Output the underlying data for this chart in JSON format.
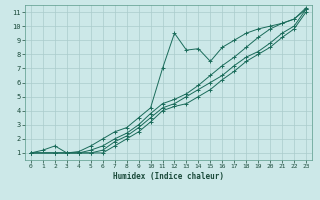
{
  "xlabel": "Humidex (Indice chaleur)",
  "bg_color": "#cce8e8",
  "grid_color": "#aacccc",
  "line_color": "#1a6b5a",
  "xlim": [
    -0.5,
    23.5
  ],
  "ylim": [
    0.5,
    11.5
  ],
  "xticks": [
    0,
    1,
    2,
    3,
    4,
    5,
    6,
    7,
    8,
    9,
    10,
    11,
    12,
    13,
    14,
    15,
    16,
    17,
    18,
    19,
    20,
    21,
    22,
    23
  ],
  "yticks": [
    1,
    2,
    3,
    4,
    5,
    6,
    7,
    8,
    9,
    10,
    11
  ],
  "line1_x": [
    0,
    1,
    2,
    3,
    4,
    5,
    6,
    7,
    8,
    9,
    10,
    11,
    12,
    13,
    14,
    15,
    16,
    17,
    18,
    19,
    20,
    21,
    22,
    23
  ],
  "line1_y": [
    1.0,
    1.2,
    1.5,
    1.0,
    1.1,
    1.5,
    2.0,
    2.5,
    2.8,
    3.5,
    4.2,
    7.0,
    9.5,
    8.3,
    8.4,
    7.5,
    8.5,
    9.0,
    9.5,
    9.8,
    10.0,
    10.2,
    10.5,
    11.2
  ],
  "line2_x": [
    0,
    2,
    3,
    4,
    5,
    6,
    7,
    8,
    9,
    10,
    11,
    12,
    13,
    14,
    15,
    16,
    17,
    18,
    19,
    20,
    21,
    22,
    23
  ],
  "line2_y": [
    1.0,
    1.0,
    1.0,
    1.0,
    1.2,
    1.5,
    2.0,
    2.4,
    3.0,
    3.8,
    4.5,
    4.8,
    5.2,
    5.8,
    6.5,
    7.2,
    7.8,
    8.5,
    9.2,
    9.8,
    10.2,
    10.5,
    11.3
  ],
  "line3_x": [
    0,
    2,
    3,
    4,
    5,
    6,
    7,
    8,
    9,
    10,
    11,
    12,
    13,
    14,
    15,
    16,
    17,
    18,
    19,
    20,
    21,
    22,
    23
  ],
  "line3_y": [
    1.0,
    1.0,
    1.0,
    1.0,
    1.0,
    1.2,
    1.8,
    2.2,
    2.8,
    3.5,
    4.2,
    4.5,
    5.0,
    5.5,
    6.0,
    6.5,
    7.2,
    7.8,
    8.2,
    8.8,
    9.5,
    10.0,
    11.2
  ],
  "line4_x": [
    0,
    2,
    3,
    4,
    5,
    6,
    7,
    8,
    9,
    10,
    11,
    12,
    13,
    14,
    15,
    16,
    17,
    18,
    19,
    20,
    21,
    22,
    23
  ],
  "line4_y": [
    1.0,
    1.0,
    1.0,
    1.0,
    1.0,
    1.0,
    1.5,
    2.0,
    2.5,
    3.2,
    4.0,
    4.3,
    4.5,
    5.0,
    5.5,
    6.2,
    6.8,
    7.5,
    8.0,
    8.5,
    9.2,
    9.8,
    11.0
  ]
}
